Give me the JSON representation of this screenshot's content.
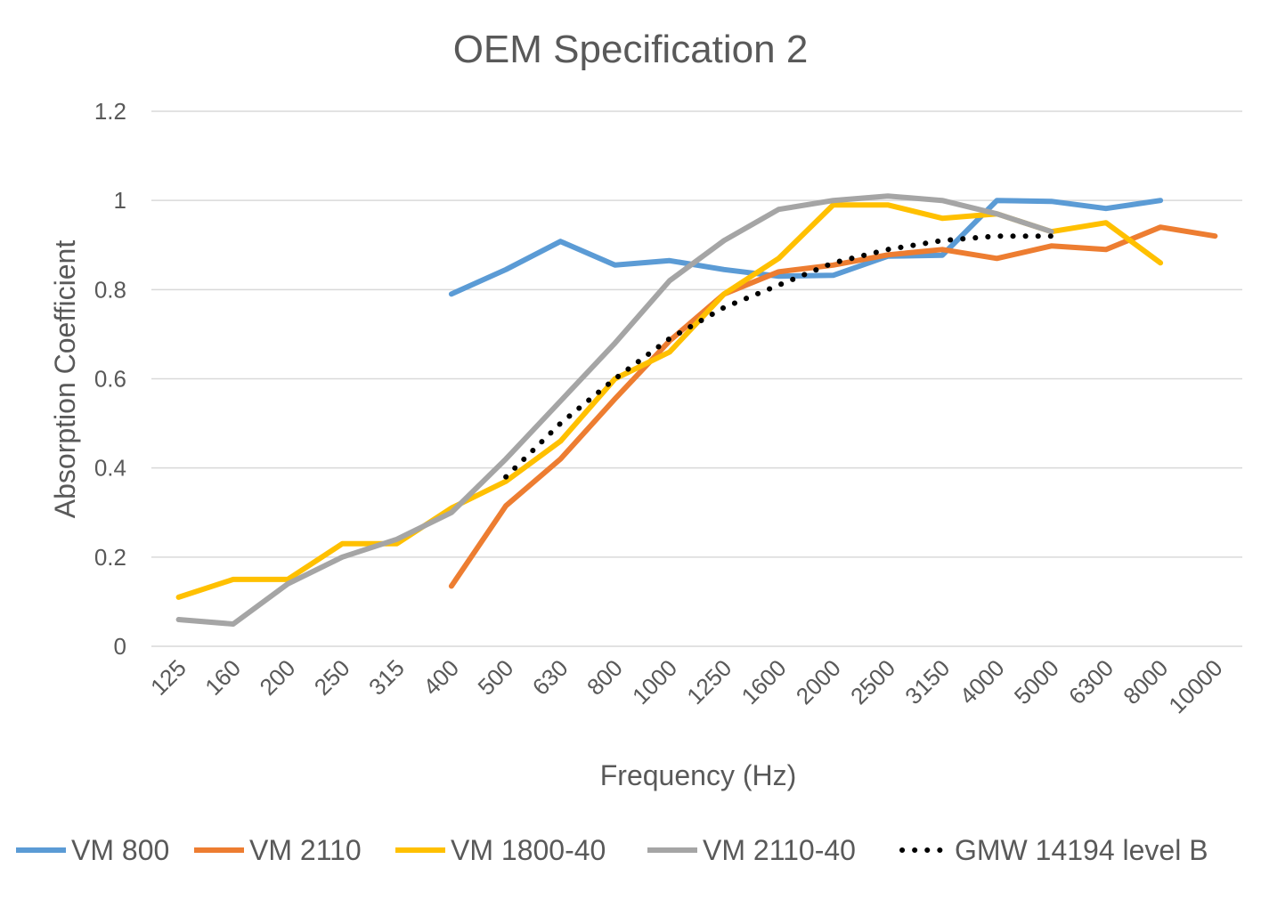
{
  "chart_data": {
    "type": "line",
    "title": "OEM Specification 2",
    "xlabel": "Frequency (Hz)",
    "ylabel": "Absorption Coefficient",
    "ylim": [
      0,
      1.2
    ],
    "yticks": [
      "0",
      "0.2",
      "0.4",
      "0.6",
      "0.8",
      "1",
      "1.2"
    ],
    "ytick_values": [
      0,
      0.2,
      0.4,
      0.6,
      0.8,
      1.0,
      1.2
    ],
    "grid": true,
    "legend_position": "bottom",
    "categories": [
      "125",
      "160",
      "200",
      "250",
      "315",
      "400",
      "500",
      "630",
      "800",
      "1000",
      "1250",
      "1600",
      "2000",
      "2500",
      "3150",
      "4000",
      "5000",
      "6300",
      "8000",
      "10000"
    ],
    "series": [
      {
        "name": "VM 800",
        "color": "#5B9BD5",
        "style": "solid",
        "values": [
          null,
          null,
          null,
          null,
          null,
          0.79,
          0.845,
          0.908,
          0.855,
          0.865,
          0.845,
          0.83,
          0.832,
          0.875,
          0.877,
          1.0,
          0.998,
          0.982,
          1.0,
          null
        ]
      },
      {
        "name": "VM 2110",
        "color": "#ED7D31",
        "style": "solid",
        "values": [
          null,
          null,
          null,
          null,
          null,
          0.135,
          0.315,
          0.42,
          0.555,
          0.685,
          0.79,
          0.84,
          0.855,
          0.878,
          0.89,
          0.87,
          0.898,
          0.89,
          0.94,
          0.92
        ]
      },
      {
        "name": "VM 1800-40",
        "color": "#FFC000",
        "style": "solid",
        "values": [
          0.11,
          0.15,
          0.15,
          0.23,
          0.23,
          0.31,
          0.37,
          0.46,
          0.6,
          0.66,
          0.79,
          0.87,
          0.99,
          0.99,
          0.96,
          0.97,
          0.93,
          0.95,
          0.86,
          null
        ]
      },
      {
        "name": "VM 2110-40",
        "color": "#A5A5A5",
        "style": "solid",
        "values": [
          0.06,
          0.05,
          0.14,
          0.2,
          0.24,
          0.3,
          0.42,
          0.55,
          0.68,
          0.82,
          0.91,
          0.98,
          1.0,
          1.01,
          1.0,
          0.97,
          0.93,
          null,
          null,
          null
        ]
      },
      {
        "name": "GMW 14194 level B",
        "color": "#000000",
        "style": "dotted",
        "values": [
          null,
          null,
          null,
          null,
          null,
          null,
          0.38,
          0.5,
          0.6,
          0.69,
          0.76,
          0.81,
          0.86,
          0.89,
          0.91,
          0.92,
          0.92,
          null,
          null,
          null
        ]
      }
    ]
  }
}
